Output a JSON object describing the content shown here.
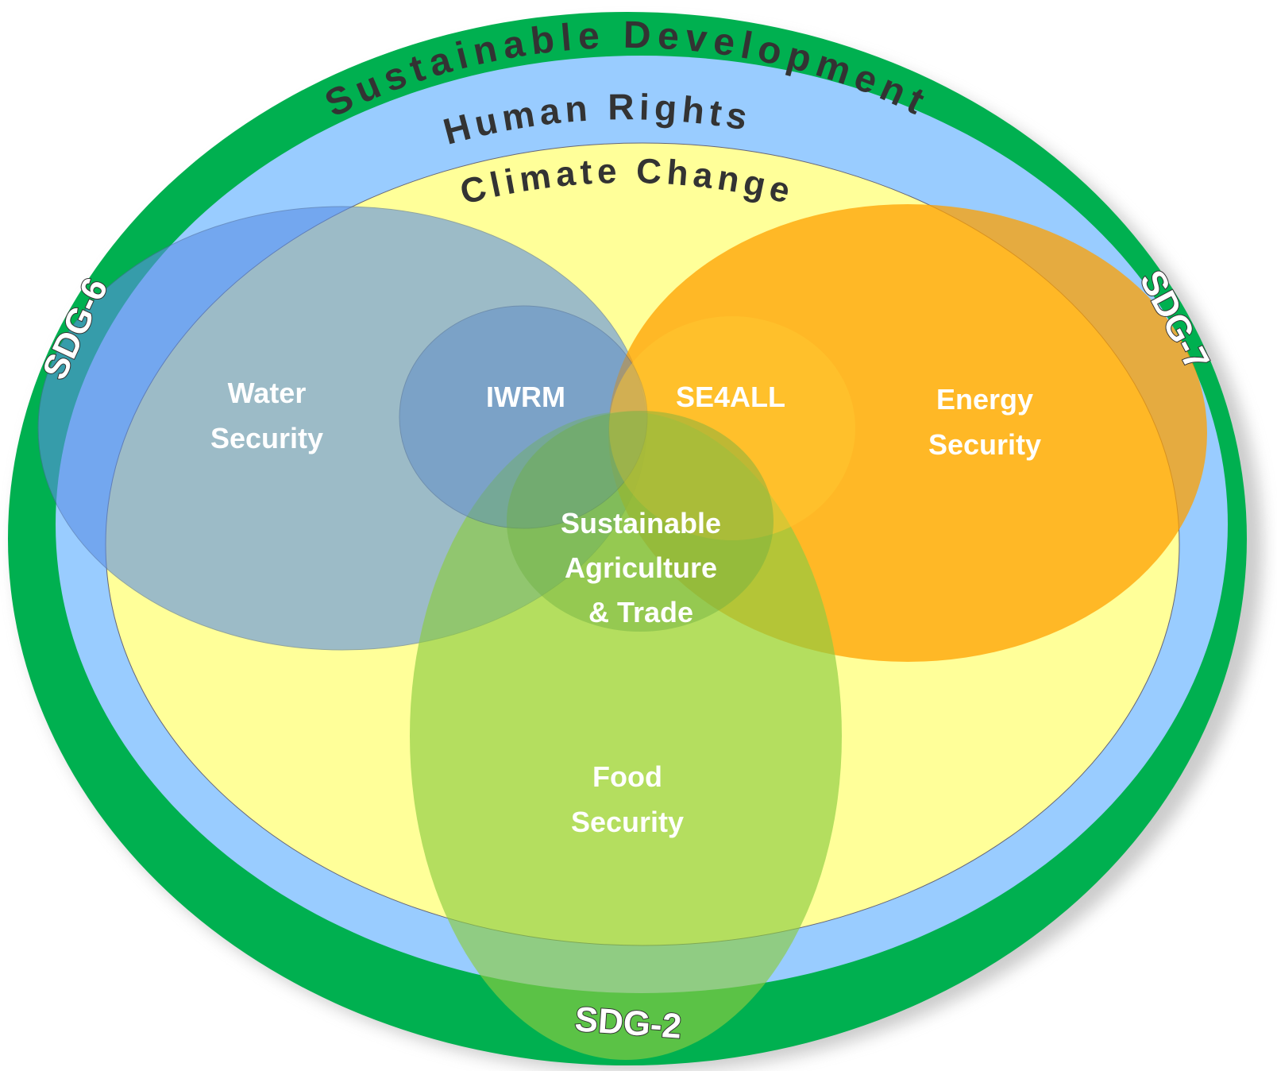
{
  "rings": {
    "outer": "Sustainable Development",
    "middle": "Human Rights",
    "inner": "Climate Change"
  },
  "sets": {
    "water": [
      "Water",
      "Security"
    ],
    "energy": [
      "Energy",
      "Security"
    ],
    "food": [
      "Food",
      "Security"
    ]
  },
  "overlaps": {
    "iwrm": "IWRM",
    "se4all": "SE4ALL",
    "agriculture": [
      "Sustainable",
      "Agriculture",
      "& Trade"
    ]
  },
  "sdgs": {
    "water": "SDG-6",
    "energy": "SDG-7",
    "food": "SDG-2"
  }
}
